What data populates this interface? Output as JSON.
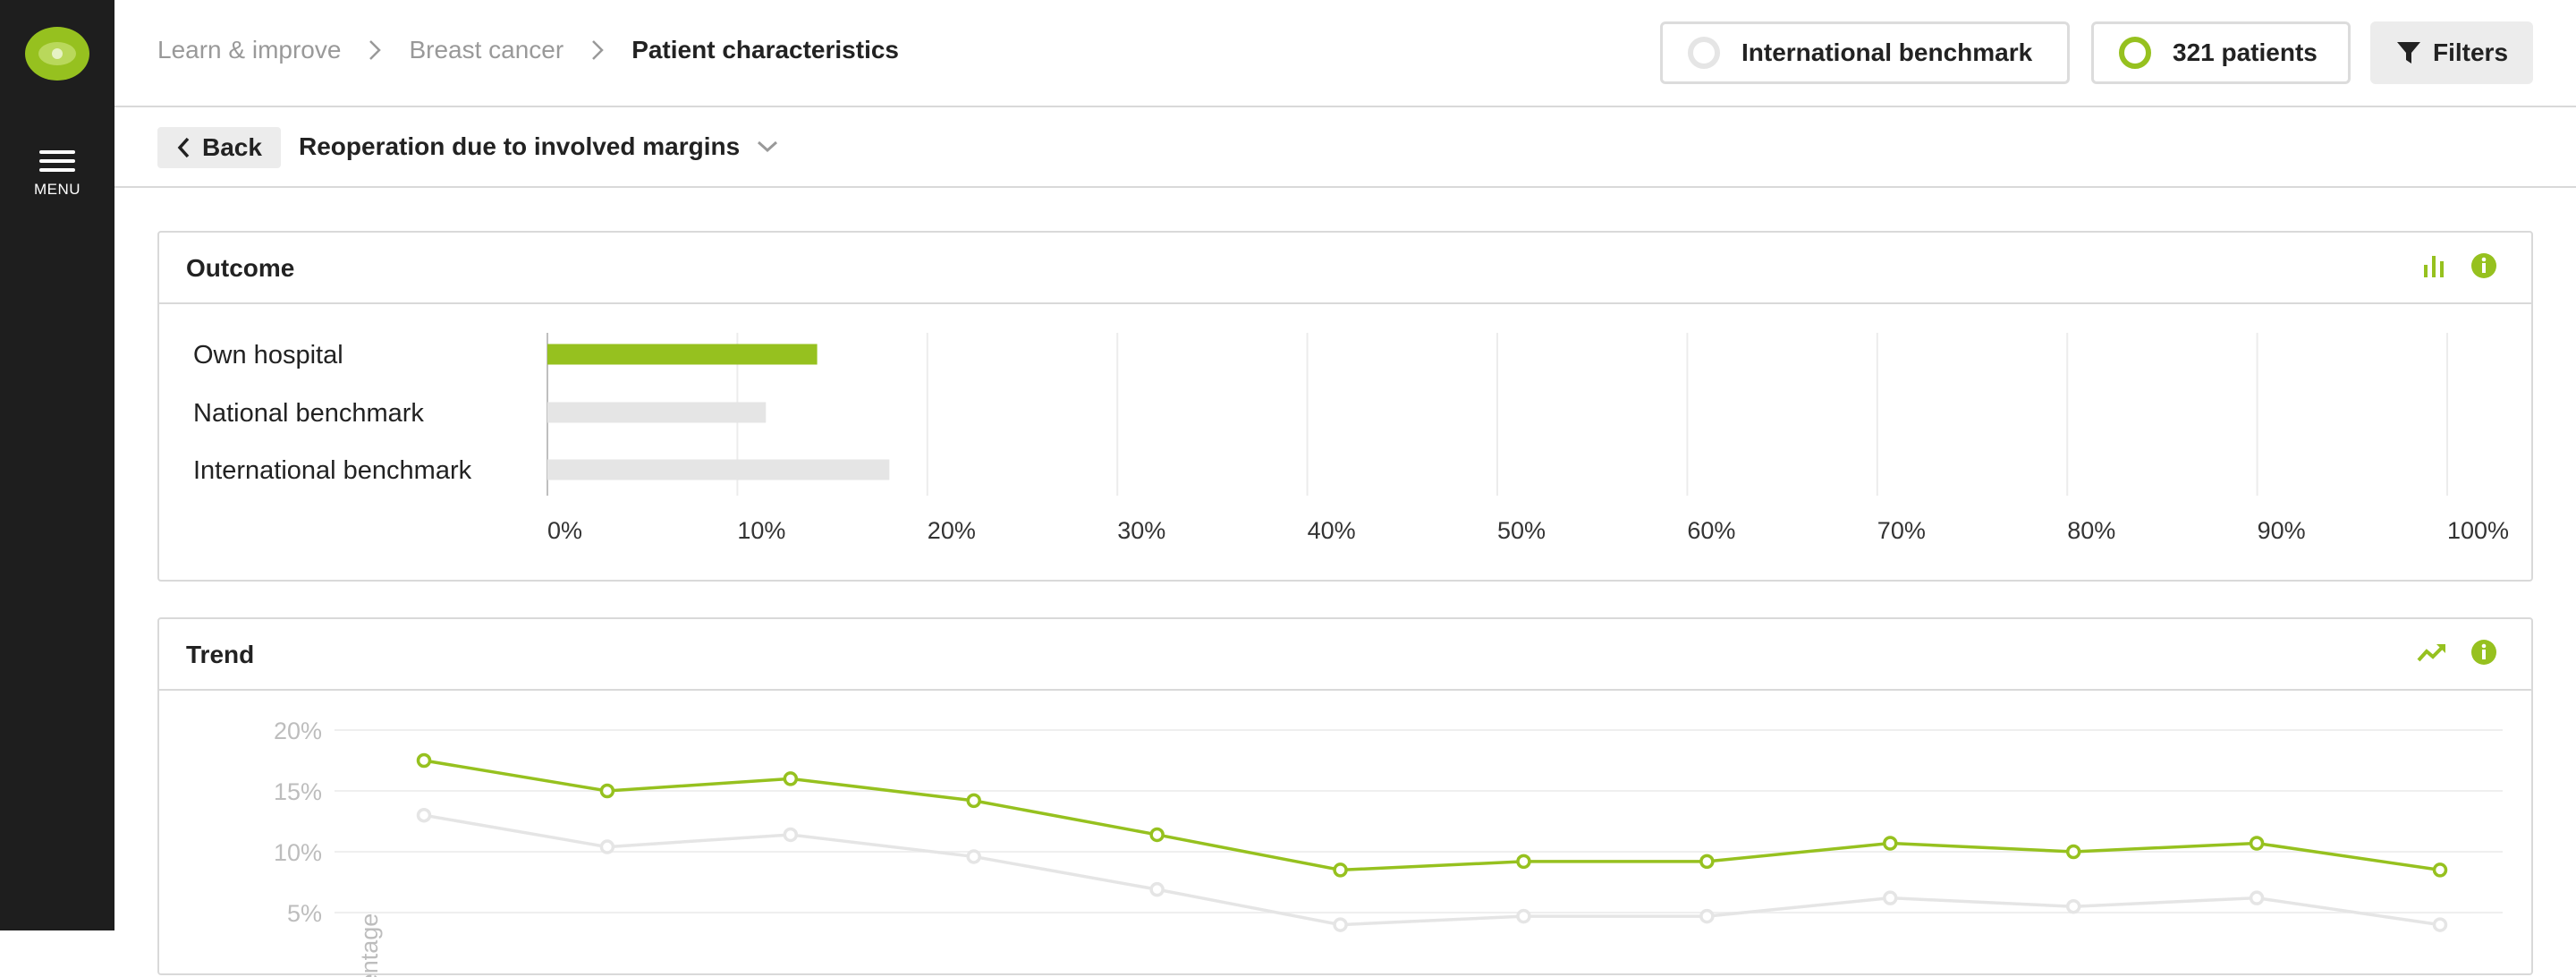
{
  "sidebar": {
    "logo_icon": "eye-logo-icon",
    "menu_icon": "hamburger-menu-icon",
    "menu_label": "MENU"
  },
  "breadcrumb": {
    "items": [
      "Learn & improve",
      "Breast cancer",
      "Patient characteristics"
    ]
  },
  "top_buttons": {
    "benchmark_label": "International benchmark",
    "patients_label": "321 patients",
    "filters_label": "Filters",
    "filters_icon": "funnel-icon"
  },
  "subbar": {
    "back_label": "Back",
    "indicator_title": "Reoperation due to involved margins"
  },
  "colors": {
    "accent": "#96c11f",
    "benchmark_gray": "#e5e5e5",
    "sidebar_bg": "#1e1e1e",
    "axis_text": "#bdbdbd"
  },
  "outcome": {
    "title": "Outcome",
    "icons": [
      "bar-chart-icon",
      "info-icon"
    ],
    "chart_data": {
      "type": "bar",
      "orientation": "horizontal",
      "categories": [
        "Own hospital",
        "National benchmark",
        "International benchmark"
      ],
      "values": [
        14.2,
        11.5,
        18
      ],
      "unit": "%",
      "xlim": [
        0,
        100
      ],
      "ticks": [
        "0%",
        "10%",
        "20%",
        "30%",
        "40%",
        "50%",
        "60%",
        "70%",
        "80%",
        "90%",
        "100%"
      ],
      "grid": true
    }
  },
  "trend": {
    "title": "Trend",
    "icons": [
      "trend-line-icon",
      "info-icon"
    ],
    "chart_data": {
      "type": "line",
      "ylim": [
        0,
        20
      ],
      "yticks": [
        "20%",
        "15%",
        "10%",
        "5%"
      ],
      "ylabel": "entage",
      "series": [
        {
          "values": [
            17.5,
            15,
            16,
            14.2,
            11.4,
            8.5,
            9.2,
            9.2,
            10.7,
            10,
            10.7,
            8.5
          ]
        },
        {
          "values": [
            13,
            10.4,
            11.4,
            9.6,
            6.9,
            4,
            4.7,
            4.7,
            6.2,
            5.5,
            6.2,
            4
          ]
        }
      ],
      "grid": true
    }
  }
}
